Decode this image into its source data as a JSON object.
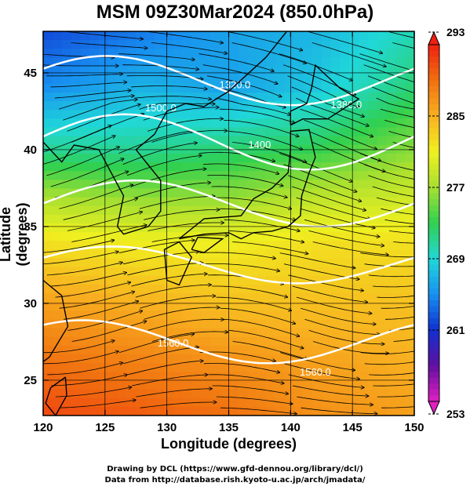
{
  "title": "MSM 09Z30Mar2024 (850.0hPa)",
  "xlabel": "Longitude (degrees)",
  "ylabel": "Latitude  (degrees)",
  "credit_line1": "Drawing by DCL (https://www.gfd-dennou.org/library/dcl/)",
  "credit_line2": "Data from http://database.rish.kyoto-u.ac.jp/arch/jmadata/",
  "chart_data": {
    "type": "heatmap",
    "x_ticks": [
      120,
      125,
      130,
      135,
      140,
      145,
      150
    ],
    "y_ticks": [
      25,
      30,
      35,
      40,
      45
    ],
    "xlim": [
      120,
      150
    ],
    "ylim": [
      22.7,
      47.7
    ],
    "grid": true,
    "colorbar_ticks": [
      293,
      285,
      277,
      269,
      261,
      253
    ],
    "colorbar_range": [
      253,
      293
    ],
    "colorbar_colors": [
      "#e020c0",
      "#6010a0",
      "#1030d0",
      "#1890f0",
      "#20d8d8",
      "#30d050",
      "#a8e030",
      "#f0f020",
      "#f8b020",
      "#f07010",
      "#f02010"
    ],
    "contour_labels": [
      "1320.0",
      "1380.0",
      "1400",
      "1500.0",
      "1560.0",
      "1560.0"
    ],
    "rows": [
      {
        "lat": 47.7,
        "values": [
          {
            "lon": 120,
            "t": 262
          },
          {
            "lon": 128,
            "t": 264
          },
          {
            "lon": 135,
            "t": 266
          },
          {
            "lon": 142,
            "t": 267
          },
          {
            "lon": 150,
            "t": 270
          }
        ]
      },
      {
        "lat": 44,
        "values": [
          {
            "lon": 120,
            "t": 265
          },
          {
            "lon": 128,
            "t": 267
          },
          {
            "lon": 135,
            "t": 266
          },
          {
            "lon": 142,
            "t": 268
          },
          {
            "lon": 150,
            "t": 272
          }
        ]
      },
      {
        "lat": 40,
        "values": [
          {
            "lon": 120,
            "t": 271
          },
          {
            "lon": 128,
            "t": 271
          },
          {
            "lon": 135,
            "t": 272
          },
          {
            "lon": 142,
            "t": 273
          },
          {
            "lon": 150,
            "t": 276
          }
        ]
      },
      {
        "lat": 37,
        "values": [
          {
            "lon": 120,
            "t": 277
          },
          {
            "lon": 128,
            "t": 276
          },
          {
            "lon": 135,
            "t": 276
          },
          {
            "lon": 142,
            "t": 278
          },
          {
            "lon": 150,
            "t": 279
          }
        ]
      },
      {
        "lat": 34,
        "values": [
          {
            "lon": 120,
            "t": 282
          },
          {
            "lon": 128,
            "t": 281
          },
          {
            "lon": 135,
            "t": 281
          },
          {
            "lon": 142,
            "t": 282
          },
          {
            "lon": 150,
            "t": 282
          }
        ]
      },
      {
        "lat": 30,
        "values": [
          {
            "lon": 120,
            "t": 286
          },
          {
            "lon": 128,
            "t": 285
          },
          {
            "lon": 135,
            "t": 284
          },
          {
            "lon": 142,
            "t": 284
          },
          {
            "lon": 150,
            "t": 284
          }
        ]
      },
      {
        "lat": 26,
        "values": [
          {
            "lon": 120,
            "t": 289
          },
          {
            "lon": 128,
            "t": 288
          },
          {
            "lon": 135,
            "t": 287
          },
          {
            "lon": 142,
            "t": 286
          },
          {
            "lon": 150,
            "t": 285
          }
        ]
      },
      {
        "lat": 22.7,
        "values": [
          {
            "lon": 120,
            "t": 291
          },
          {
            "lon": 128,
            "t": 290
          },
          {
            "lon": 135,
            "t": 289
          },
          {
            "lon": 142,
            "t": 287
          },
          {
            "lon": 150,
            "t": 286
          }
        ]
      }
    ]
  }
}
